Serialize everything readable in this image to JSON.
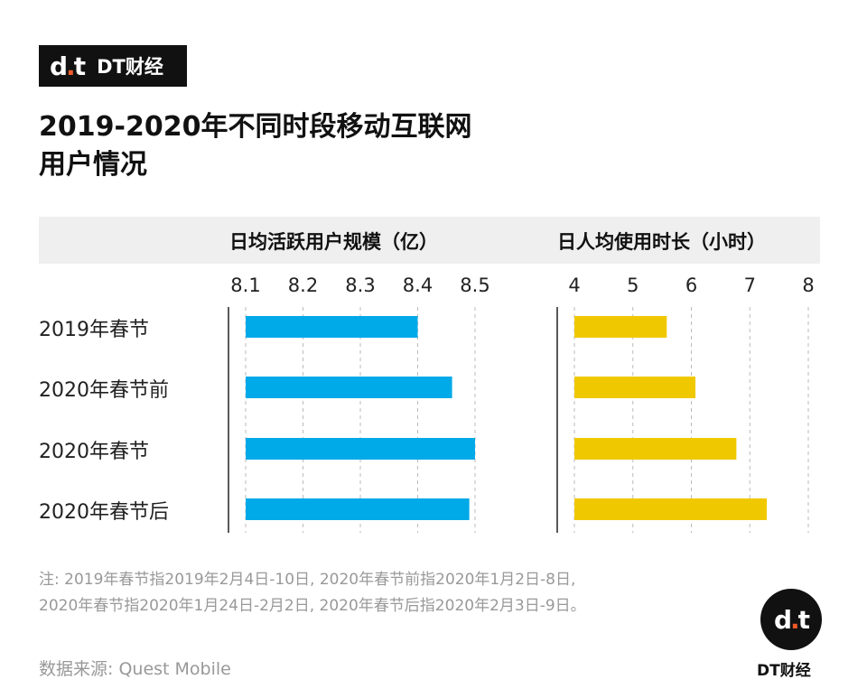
{
  "brand": "DT财经",
  "title_lines": [
    "2019-2020年不同时段移动互联网",
    "用户情况"
  ],
  "categories": [
    "2019年春节",
    "2020年春节前",
    "2020年春节",
    "2020年春节后"
  ],
  "chart_data": [
    {
      "type": "bar",
      "orientation": "horizontal",
      "title": "日均活跃用户规模（亿）",
      "categories": [
        "2019年春节",
        "2020年春节前",
        "2020年春节",
        "2020年春节后"
      ],
      "values": [
        8.4,
        8.46,
        8.5,
        8.49
      ],
      "xlim": [
        8.1,
        8.5
      ],
      "ticks": [
        "8.1",
        "8.2",
        "8.3",
        "8.4",
        "8.5"
      ],
      "color": "#00a9e8",
      "grid": true
    },
    {
      "type": "bar",
      "orientation": "horizontal",
      "title": "日人均使用时长（小时）",
      "categories": [
        "2019年春节",
        "2020年春节前",
        "2020年春节",
        "2020年春节后"
      ],
      "values": [
        5.58,
        6.07,
        6.77,
        7.29
      ],
      "xlim": [
        4,
        8
      ],
      "ticks": [
        "4",
        "5",
        "6",
        "7",
        "8"
      ],
      "color": "#f0c800",
      "grid": true
    }
  ],
  "notes": [
    "注: 2019年春节指2019年2月4日-10日, 2020年春节前指2020年1月2日-8日,",
    "2020年春节指2020年1月24日-2月2日, 2020年春节后指2020年2月3日-9日。"
  ],
  "source": "数据来源: Quest Mobile"
}
